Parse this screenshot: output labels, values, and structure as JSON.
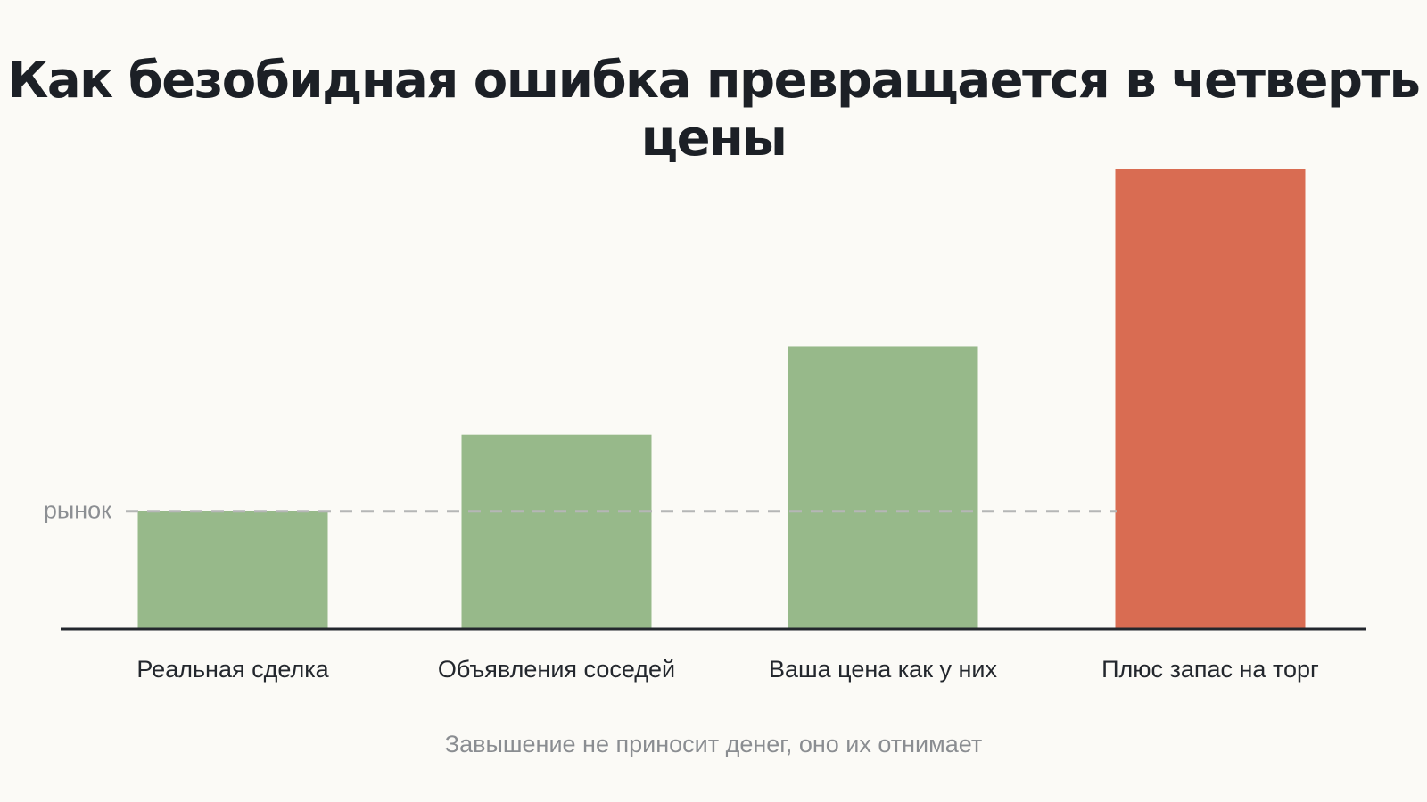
{
  "title": "Как безобидная ошибка превращается в четверть цены",
  "subtitle": "Завышение не приносит денег, оно их отнимает",
  "colors": {
    "background": "#fbfaf6",
    "bar_ok": "#97b98a",
    "bar_bad": "#d96c52",
    "baseline": "#23272d",
    "reference": "#b5b6b6"
  },
  "chart_data": {
    "type": "bar",
    "title": "Как безобидная ошибка превращается в четверть цены",
    "categories": [
      "Реальная сделка",
      "Объявления соседей",
      "Ваша цена как у них",
      "Плюс запас на торг"
    ],
    "values": [
      100,
      165,
      240,
      390
    ],
    "bar_colors": [
      "#97b98a",
      "#97b98a",
      "#97b98a",
      "#d96c52"
    ],
    "ylim": [
      0,
      400
    ],
    "xlabel": "",
    "ylabel": "",
    "grid": false,
    "reference_line": {
      "label": "рынок",
      "value": 100,
      "style": "dashed"
    }
  }
}
